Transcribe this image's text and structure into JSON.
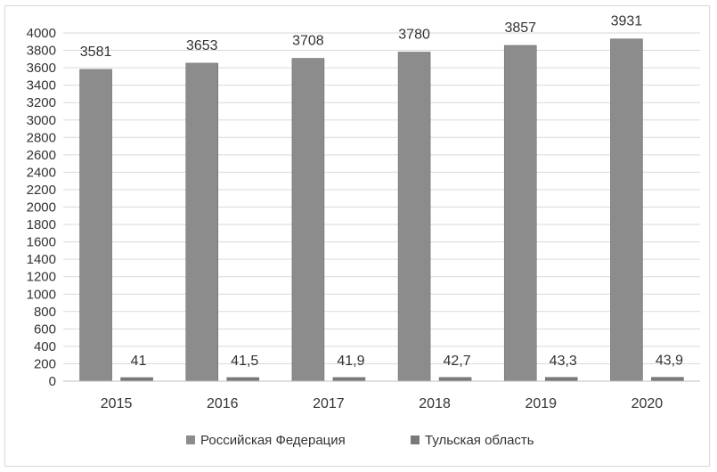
{
  "chart_data": {
    "type": "bar",
    "categories": [
      "2015",
      "2016",
      "2017",
      "2018",
      "2019",
      "2020"
    ],
    "series": [
      {
        "name": "Российская Федерация",
        "values": [
          3581,
          3653,
          3708,
          3780,
          3857,
          3931
        ],
        "labels": [
          "3581",
          "3653",
          "3708",
          "3780",
          "3857",
          "3931"
        ],
        "color": "#8c8c8c"
      },
      {
        "name": "Тульская область",
        "values": [
          41,
          41.5,
          41.9,
          42.7,
          43.3,
          43.9
        ],
        "labels": [
          "41",
          "41,5",
          "41,9",
          "42,7",
          "43,3",
          "43,9"
        ],
        "color": "#7a7a7a"
      }
    ],
    "ylim": [
      0,
      4000
    ],
    "yticks": [
      0,
      200,
      400,
      600,
      800,
      1000,
      1200,
      1400,
      1600,
      1800,
      2000,
      2200,
      2400,
      2600,
      2800,
      3000,
      3200,
      3400,
      3600,
      3800,
      4000
    ],
    "grid": true,
    "legend_position": "bottom"
  }
}
